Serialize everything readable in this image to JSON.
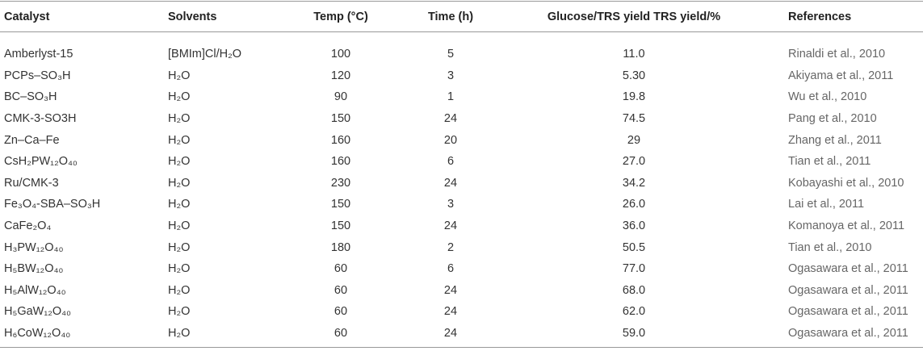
{
  "table": {
    "header": [
      "Catalyst",
      "Solvents",
      "Temp (°C)",
      "Time (h)",
      "Glucose/TRS yield TRS yield/%",
      "References"
    ],
    "rows": [
      [
        "Amberlyst-15",
        "[BMIm]Cl/H₂O",
        "100",
        "5",
        "11.0",
        "Rinaldi et al., 2010"
      ],
      [
        "PCPs–SO₃H",
        "H₂O",
        "120",
        "3",
        "5.30",
        "Akiyama et al., 2011"
      ],
      [
        "BC–SO₃H",
        "H₂O",
        "90",
        "1",
        "19.8",
        "Wu et al., 2010"
      ],
      [
        "CMK-3-SO3H",
        "H₂O",
        "150",
        "24",
        "74.5",
        "Pang et al., 2010"
      ],
      [
        "Zn–Ca–Fe",
        "H₂O",
        "160",
        "20",
        "29",
        "Zhang et al., 2011"
      ],
      [
        "CsH₂PW₁₂O₄₀",
        "H₂O",
        "160",
        "6",
        "27.0",
        "Tian et al., 2011"
      ],
      [
        "Ru/CMK-3",
        "H₂O",
        "230",
        "24",
        "34.2",
        "Kobayashi et al., 2010"
      ],
      [
        "Fe₃O₄-SBA–SO₃H",
        "H₂O",
        "150",
        "3",
        "26.0",
        "Lai et al., 2011"
      ],
      [
        "CaFe₂O₄",
        "H₂O",
        "150",
        "24",
        "36.0",
        "Komanoya et al., 2011"
      ],
      [
        "H₃PW₁₂O₄₀",
        "H₂O",
        "180",
        "2",
        "50.5",
        "Tian et al., 2010"
      ],
      [
        "H₅BW₁₂O₄₀",
        "H₂O",
        "60",
        "6",
        "77.0",
        "Ogasawara et al., 2011"
      ],
      [
        "H₅AlW₁₂O₄₀",
        "H₂O",
        "60",
        "24",
        "68.0",
        "Ogasawara et al., 2011"
      ],
      [
        "H₅GaW₁₂O₄₀",
        "H₂O",
        "60",
        "24",
        "62.0",
        "Ogasawara et al., 2011"
      ],
      [
        "H₆CoW₁₂O₄₀",
        "H₂O",
        "60",
        "24",
        "59.0",
        "Ogasawara et al., 2011"
      ]
    ]
  }
}
